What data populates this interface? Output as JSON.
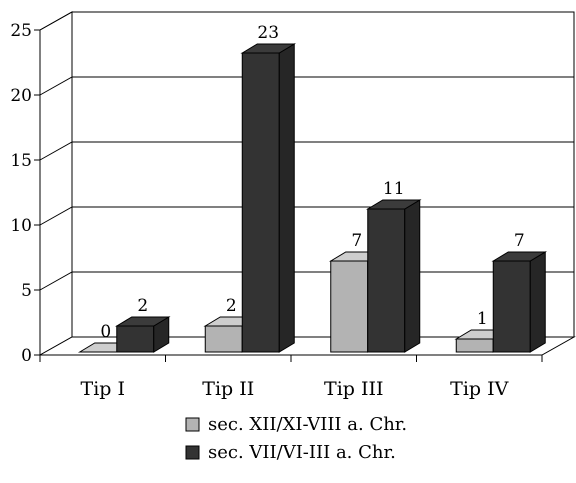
{
  "chart_data": {
    "type": "bar",
    "title": "",
    "xlabel": "",
    "ylabel": "",
    "ylim": [
      0,
      25
    ],
    "yticks": [
      0,
      5,
      10,
      15,
      20,
      25
    ],
    "categories": [
      "Tip I",
      "Tip II",
      "Tip III",
      "Tip IV"
    ],
    "series": [
      {
        "name": "sec. XII/XI-VIII a. Chr.",
        "values": [
          0,
          2,
          7,
          1
        ],
        "color": "#b3b3b3"
      },
      {
        "name": "sec. VII/VI-III a. Chr.",
        "values": [
          2,
          23,
          11,
          7
        ],
        "color": "#333333"
      }
    ],
    "grid": true,
    "three_d": true,
    "legend_position": "bottom",
    "data_labels": true
  }
}
